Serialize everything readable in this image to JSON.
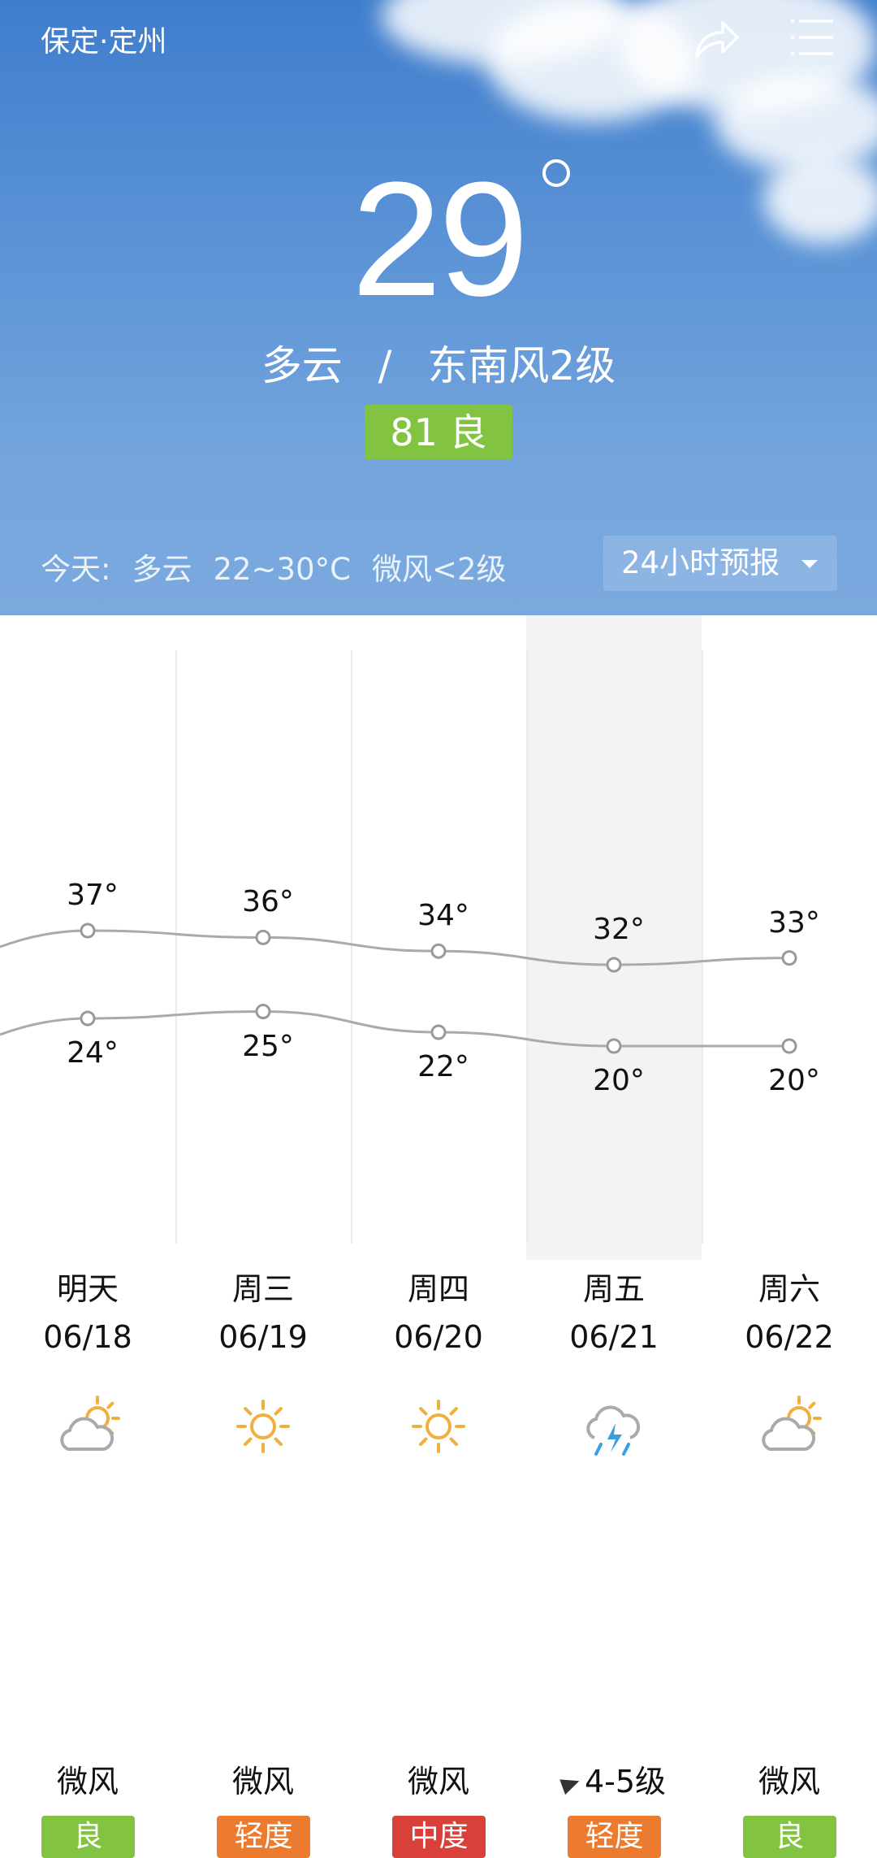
{
  "header": {
    "city": "保定·定州",
    "share_icon": "share-icon",
    "menu_icon": "menu-icon"
  },
  "current": {
    "temp": "29",
    "condition": "多云",
    "separator": "/",
    "wind": "东南风2级",
    "aqi_value": "81",
    "aqi_level": "良",
    "aqi_color": "#82c341"
  },
  "today": {
    "label": "今天:",
    "condition": "多云",
    "range": "22~30°C",
    "wind": "微风<2级"
  },
  "forecast_button": "24小时预报",
  "days": [
    {
      "day": "明天",
      "date": "06/18",
      "icon": "partly-cloudy",
      "high": 37,
      "low": 24,
      "high_label": "37°",
      "low_label": "24°",
      "wind": "微风",
      "aqi": "良",
      "aqi_color": "#82c341"
    },
    {
      "day": "周三",
      "date": "06/19",
      "icon": "sunny",
      "high": 36,
      "low": 25,
      "high_label": "36°",
      "low_label": "25°",
      "wind": "微风",
      "aqi": "轻度",
      "aqi_color": "#ec7a2f"
    },
    {
      "day": "周四",
      "date": "06/20",
      "icon": "sunny",
      "high": 34,
      "low": 22,
      "high_label": "34°",
      "low_label": "22°",
      "wind": "微风",
      "aqi": "中度",
      "aqi_color": "#d9403a"
    },
    {
      "day": "周五",
      "date": "06/21",
      "icon": "thunderstorm",
      "high": 32,
      "low": 20,
      "high_label": "32°",
      "low_label": "20°",
      "wind": "4-5级",
      "aqi": "轻度",
      "aqi_color": "#ec7a2f"
    },
    {
      "day": "周六",
      "date": "06/22",
      "icon": "partly-cloudy",
      "high": 33,
      "low": 20,
      "high_label": "33°",
      "low_label": "20°",
      "wind": "微风",
      "aqi": "良",
      "aqi_color": "#82c341"
    }
  ]
}
